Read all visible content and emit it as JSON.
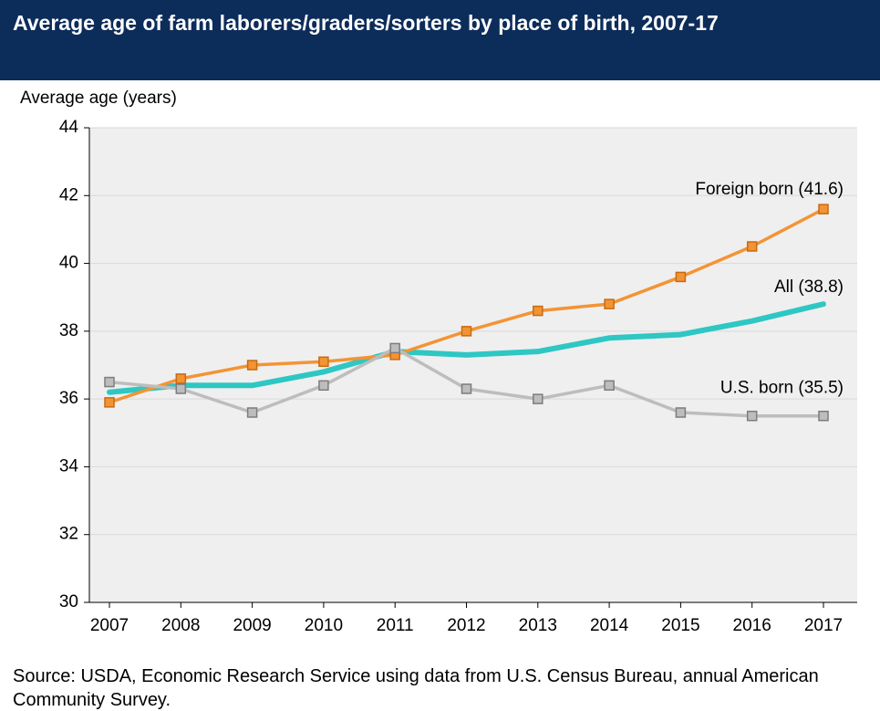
{
  "chart_data": {
    "type": "line",
    "title": "Average age of farm laborers/graders/sorters by place of birth, 2007-17",
    "y_axis_label": "Average age (years)",
    "source": "Source: USDA, Economic Research Service using data from U.S. Census Bureau, annual American Community Survey.",
    "categories": [
      "2007",
      "2008",
      "2009",
      "2010",
      "2011",
      "2012",
      "2013",
      "2014",
      "2015",
      "2016",
      "2017"
    ],
    "series": [
      {
        "name": "All (38.8)",
        "color": "#2ec7c3",
        "markers": false,
        "values": [
          36.2,
          36.4,
          36.4,
          36.8,
          37.4,
          37.3,
          37.4,
          37.8,
          37.9,
          38.3,
          38.8
        ]
      },
      {
        "name": "Foreign born (41.6)",
        "color": "#f39434",
        "markers": true,
        "values": [
          35.9,
          36.6,
          37.0,
          37.1,
          37.3,
          38.0,
          38.6,
          38.8,
          39.6,
          40.5,
          41.6
        ]
      },
      {
        "name": "U.S. born (35.5)",
        "color": "#bdbdbd",
        "markers": true,
        "values": [
          36.5,
          36.3,
          35.6,
          36.4,
          37.5,
          36.3,
          36.0,
          36.4,
          35.6,
          35.5,
          35.5
        ]
      }
    ],
    "ylim": [
      30,
      44
    ],
    "yticks": [
      30,
      32,
      34,
      36,
      38,
      40,
      42,
      44
    ],
    "grid": true
  }
}
